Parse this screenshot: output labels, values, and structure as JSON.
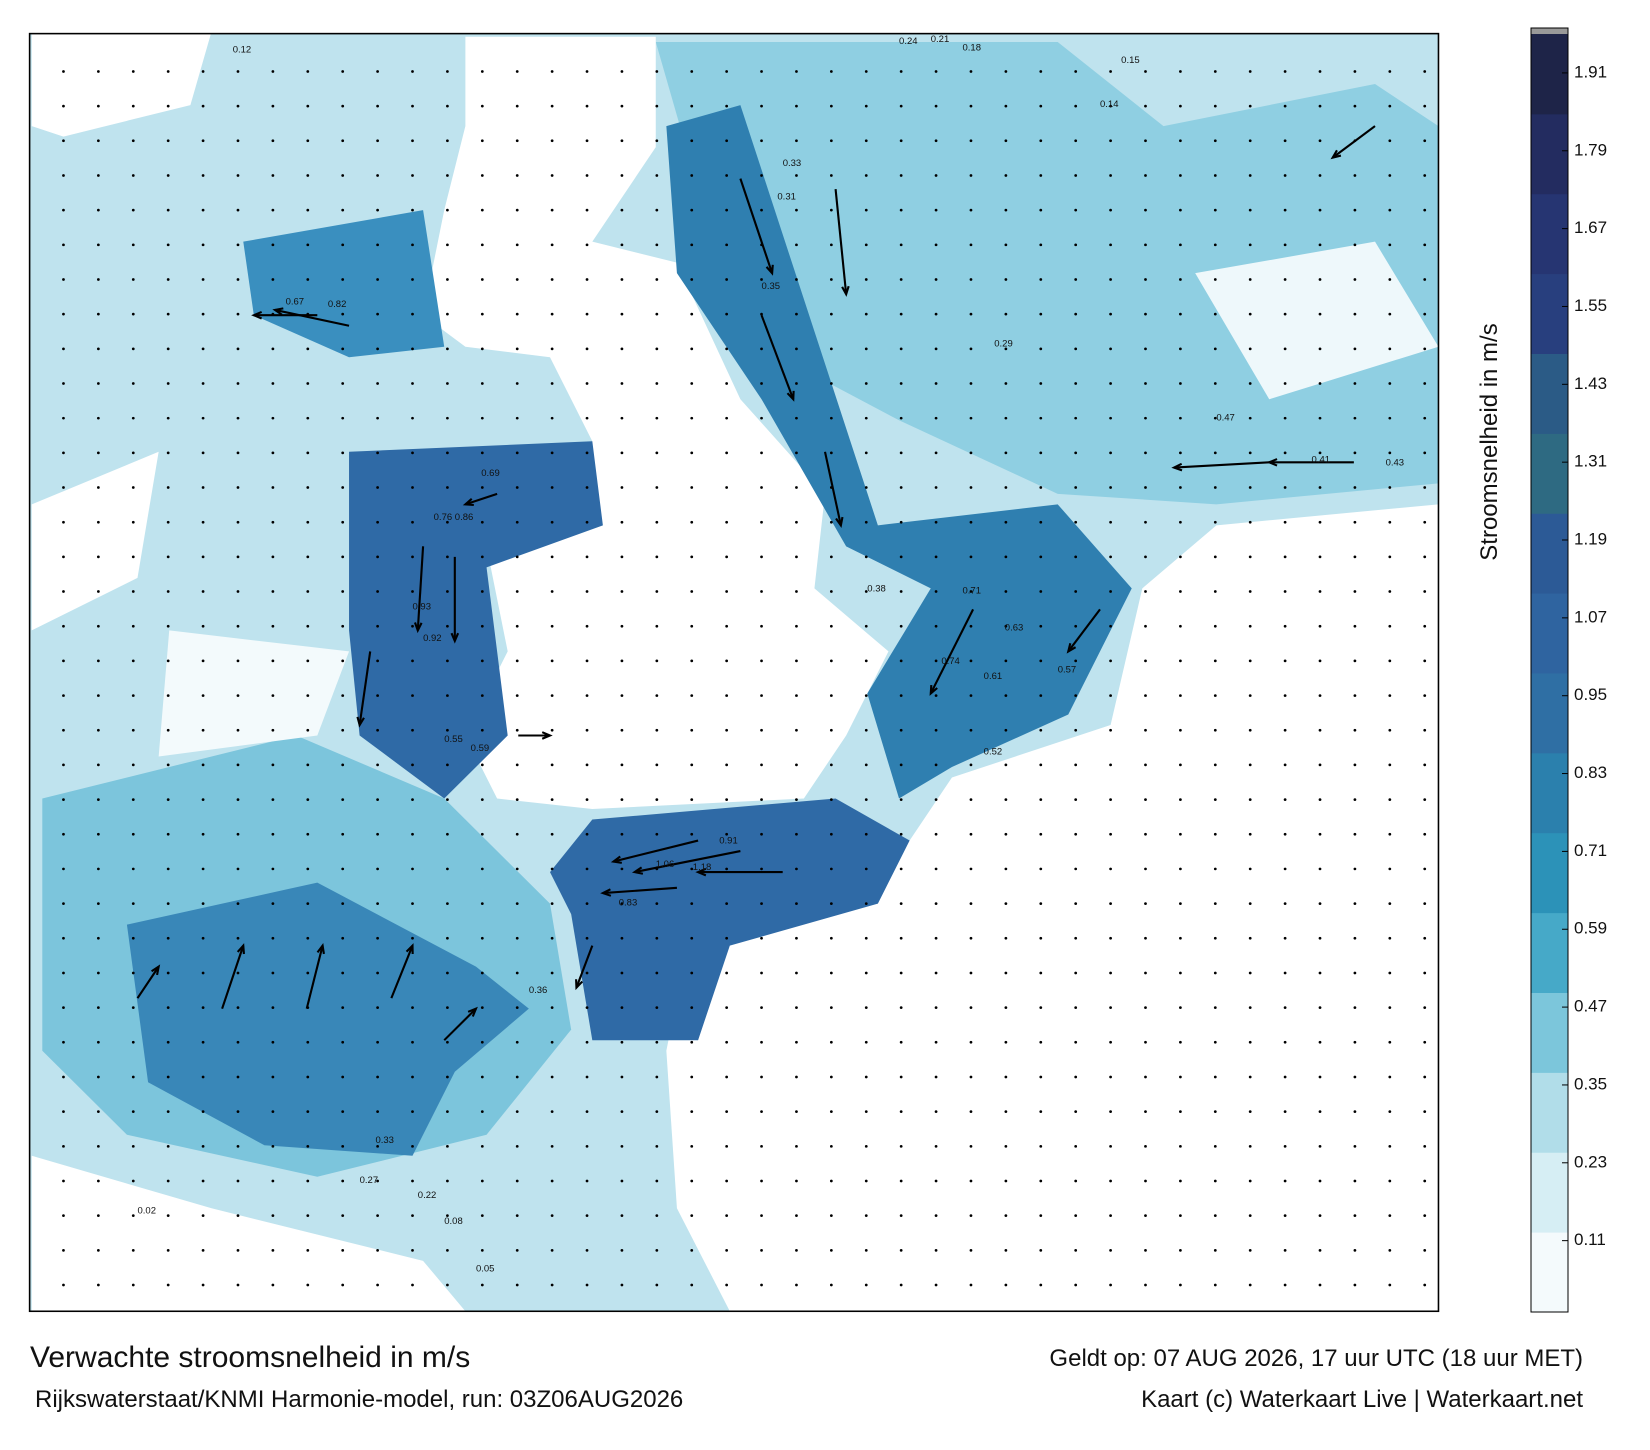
{
  "title": "Verwachte stroomsnelheid in m/s",
  "subtitle": "Rijkswaterstaat/KNMI Harmonie-model, run: 03Z06AUG2026",
  "valid_time": "Geldt op: 07 AUG 2026, 17 uur UTC (18 uur MET)",
  "credit": "Kaart (c) Waterkaart Live | Waterkaart.net",
  "colorbar": {
    "label": "Stroomsnelheid in m/s",
    "lim": [
      0,
      1.97
    ],
    "ticks": [
      0.11,
      0.23,
      0.35,
      0.47,
      0.59,
      0.71,
      0.83,
      0.95,
      1.07,
      1.19,
      1.31,
      1.43,
      1.55,
      1.67,
      1.79,
      1.91
    ],
    "colors": [
      "#f4fafc",
      "#d6eef4",
      "#b1dde9",
      "#7cc6db",
      "#46a9c8",
      "#2c92b8",
      "#2b80ad",
      "#2f6fa4",
      "#2f64a0",
      "#2c5a96",
      "#2e6a82",
      "#2b5b86",
      "#283f7e",
      "#263572",
      "#232c60",
      "#1e2448"
    ]
  },
  "speed_labels": [
    "0.12",
    "0.24",
    "0.21",
    "0.18",
    "0.15",
    "0.33",
    "0.31",
    "0.35",
    "0.82",
    "0.67",
    "0.69",
    "0.76",
    "0.86",
    "0.93",
    "0.92",
    "0.55",
    "0.59",
    "0.71",
    "0.63",
    "0.74",
    "1.06",
    "1.18",
    "0.91",
    "0.83",
    "0.52",
    "0.36",
    "0.43",
    "0.41",
    "0.33",
    "0.27",
    "0.22",
    "0.08",
    "0.05",
    "0.02",
    "0.14",
    "0.38",
    "0.29",
    "0.47",
    "0.57",
    "0.61"
  ]
}
